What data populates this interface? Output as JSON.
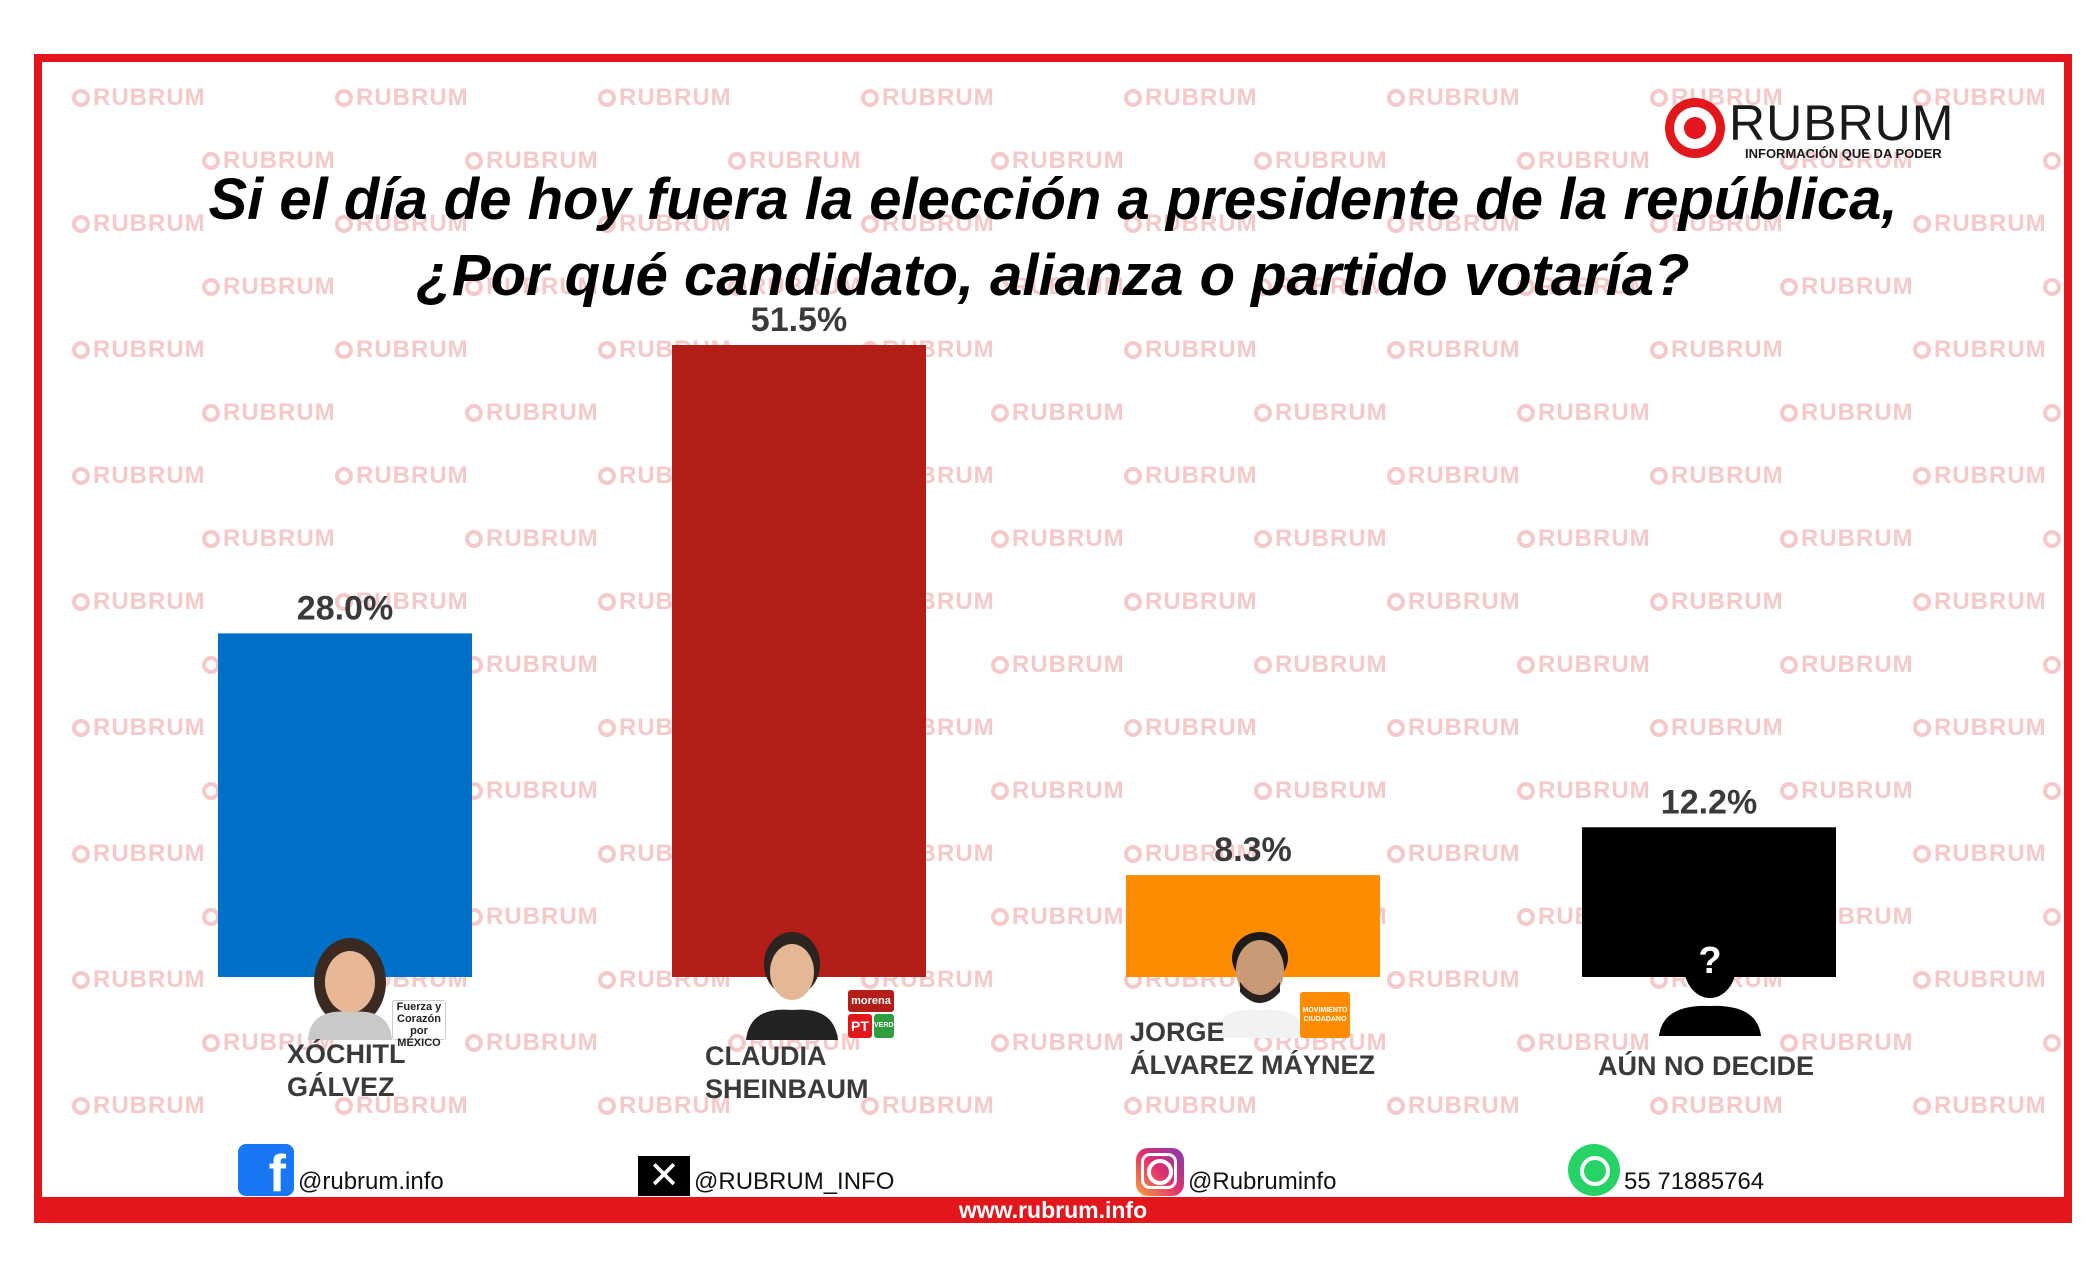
{
  "title": {
    "line1": "Si el día de hoy fuera la elección a presidente de la república,",
    "line2": "¿Por qué candidato, alianza o partido votaría?"
  },
  "brand": {
    "name": "RUBRUM",
    "tagline": "INFORMACIÓN QUE DA PODER",
    "watermark": "RUBRUM"
  },
  "chart_data": {
    "type": "bar",
    "title": "Si el día de hoy fuera la elección a presidente de la república, ¿Por qué candidato, alianza o partido votaría?",
    "categories": [
      "XÓCHITL GÁLVEZ",
      "CLAUDIA SHEINBAUM",
      "JORGE ÁLVAREZ MÁYNEZ",
      "AÚN NO DECIDE"
    ],
    "values": [
      28.0,
      51.5,
      8.3,
      12.2
    ],
    "value_labels": [
      "28.0%",
      "51.5%",
      "8.3%",
      "12.2%"
    ],
    "colors": [
      "#0070c8",
      "#b41e18",
      "#ff8c00",
      "#000000"
    ],
    "xlabel": "",
    "ylabel": "",
    "ylim": [
      0,
      51.5
    ],
    "grid": false,
    "legend": "none"
  },
  "candidates": [
    {
      "line1": "XÓCHITL",
      "line2": "GÁLVEZ",
      "party": "Fuerza y Corazón por MÉXICO"
    },
    {
      "line1": "CLAUDIA",
      "line2": "SHEINBAUM",
      "party_a": "morena",
      "party_b": "PT",
      "party_c": "VERDE"
    },
    {
      "line1": "JORGE",
      "line2": "ÁLVAREZ MÁYNEZ",
      "party": "MOVIMIENTO CIUDADANO"
    },
    {
      "line1": "AÚN NO DECIDE",
      "glyph": "?"
    }
  ],
  "social": {
    "facebook": "@rubrum.info",
    "x": "@RUBRUM_INFO",
    "instagram": "@Rubruminfo",
    "whatsapp": "55 71885764"
  },
  "footer": {
    "url": "www.rubrum.info"
  }
}
